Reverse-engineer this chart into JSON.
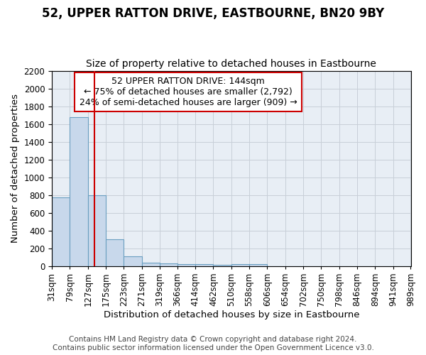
{
  "title": "52, UPPER RATTON DRIVE, EASTBOURNE, BN20 9BY",
  "subtitle": "Size of property relative to detached houses in Eastbourne",
  "xlabel": "Distribution of detached houses by size in Eastbourne",
  "ylabel": "Number of detached properties",
  "footer_line1": "Contains HM Land Registry data © Crown copyright and database right 2024.",
  "footer_line2": "Contains public sector information licensed under the Open Government Licence v3.0.",
  "annotation_line1": "52 UPPER RATTON DRIVE: 144sqm",
  "annotation_line2": "← 75% of detached houses are smaller (2,792)",
  "annotation_line3": "24% of semi-detached houses are larger (909) →",
  "red_line_x": 144,
  "bar_left_edges": [
    31,
    79,
    127,
    175,
    223,
    271,
    319,
    366,
    414,
    462,
    510,
    558,
    606,
    654,
    702,
    750,
    798,
    846,
    894,
    942
  ],
  "bar_widths": [
    48,
    48,
    48,
    48,
    48,
    48,
    47,
    48,
    48,
    48,
    48,
    48,
    48,
    48,
    48,
    48,
    48,
    48,
    47,
    47
  ],
  "bar_heights": [
    770,
    1680,
    800,
    300,
    110,
    40,
    30,
    25,
    20,
    15,
    20,
    20,
    0,
    0,
    0,
    0,
    0,
    0,
    0,
    0
  ],
  "bar_color": "#c8d8eb",
  "bar_edge_color": "#6a9fc0",
  "red_line_color": "#cc0000",
  "grid_color": "#c8cfd8",
  "bg_color": "#e8eef5",
  "annotation_box_color": "#cc0000",
  "ylim": [
    0,
    2200
  ],
  "yticks": [
    0,
    200,
    400,
    600,
    800,
    1000,
    1200,
    1400,
    1600,
    1800,
    2000,
    2200
  ],
  "xtick_labels": [
    "31sqm",
    "79sqm",
    "127sqm",
    "175sqm",
    "223sqm",
    "271sqm",
    "319sqm",
    "366sqm",
    "414sqm",
    "462sqm",
    "510sqm",
    "558sqm",
    "606sqm",
    "654sqm",
    "702sqm",
    "750sqm",
    "798sqm",
    "846sqm",
    "894sqm",
    "941sqm",
    "989sqm"
  ],
  "title_fontsize": 12,
  "subtitle_fontsize": 10,
  "axis_label_fontsize": 9.5,
  "tick_fontsize": 8.5,
  "annotation_fontsize": 9,
  "footer_fontsize": 7.5
}
